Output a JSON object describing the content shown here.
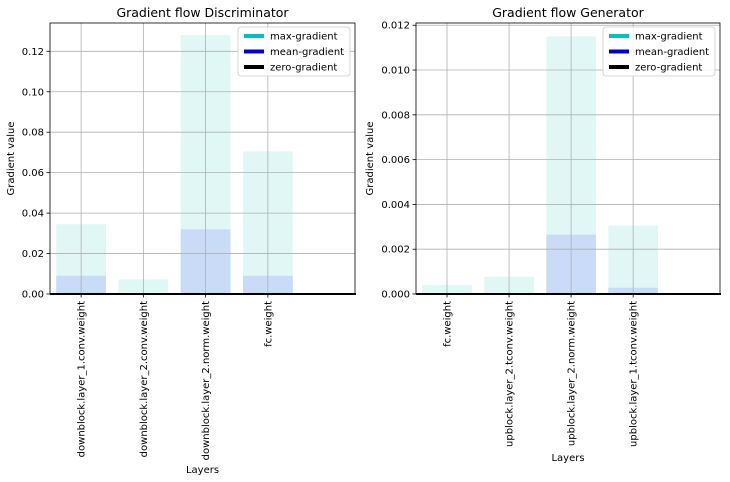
{
  "chart_data": [
    {
      "type": "bar",
      "title": "Gradient flow Discriminator",
      "xlabel": "Layers",
      "ylabel": "Gradient value",
      "categories": [
        "downblock.layer_1.conv.weight",
        "downblock.layer_2.conv.weight",
        "downblock.layer_2.norm.weight",
        "fc.weight"
      ],
      "series": [
        {
          "name": "max-gradient",
          "values": [
            0.0345,
            0.0072,
            0.128,
            0.0705
          ]
        },
        {
          "name": "mean-gradient",
          "values": [
            0.009,
            0.0,
            0.032,
            0.009
          ]
        }
      ],
      "ylim": [
        0,
        0.134
      ],
      "yticks": [
        0.0,
        0.02,
        0.04,
        0.06,
        0.08,
        0.1,
        0.12
      ],
      "ytick_labels": [
        "0.00",
        "0.02",
        "0.04",
        "0.06",
        "0.08",
        "0.10",
        "0.12"
      ],
      "grid": true,
      "legend_position": "top-right"
    },
    {
      "type": "bar",
      "title": "Gradient flow Generator",
      "xlabel": "Layers",
      "ylabel": "Gradient value",
      "categories": [
        "fc.weight",
        "upblock.layer_2.tconv.weight",
        "upblock.layer_2.norm.weight",
        "upblock.layer_1.tconv.weight"
      ],
      "series": [
        {
          "name": "max-gradient",
          "values": [
            0.0004,
            0.00077,
            0.0115,
            0.00305
          ]
        },
        {
          "name": "mean-gradient",
          "values": [
            0.0,
            0.0,
            0.00265,
            0.00028
          ]
        }
      ],
      "ylim": [
        0,
        0.0121
      ],
      "yticks": [
        0.0,
        0.002,
        0.004,
        0.006,
        0.008,
        0.01,
        0.012
      ],
      "ytick_labels": [
        "0.000",
        "0.002",
        "0.004",
        "0.006",
        "0.008",
        "0.010",
        "0.012"
      ],
      "grid": true,
      "legend_position": "top-right"
    }
  ],
  "legend": [
    {
      "label": "max-gradient",
      "color": "#00bfbf"
    },
    {
      "label": "mean-gradient",
      "color": "#0000cc"
    },
    {
      "label": "zero-gradient",
      "color": "#000000"
    }
  ],
  "colors": {
    "max_bar": "#e0f7f5",
    "mean_bar": "#c9dbf7",
    "grid": "#b0b0b0",
    "zero_line": "#000000"
  }
}
